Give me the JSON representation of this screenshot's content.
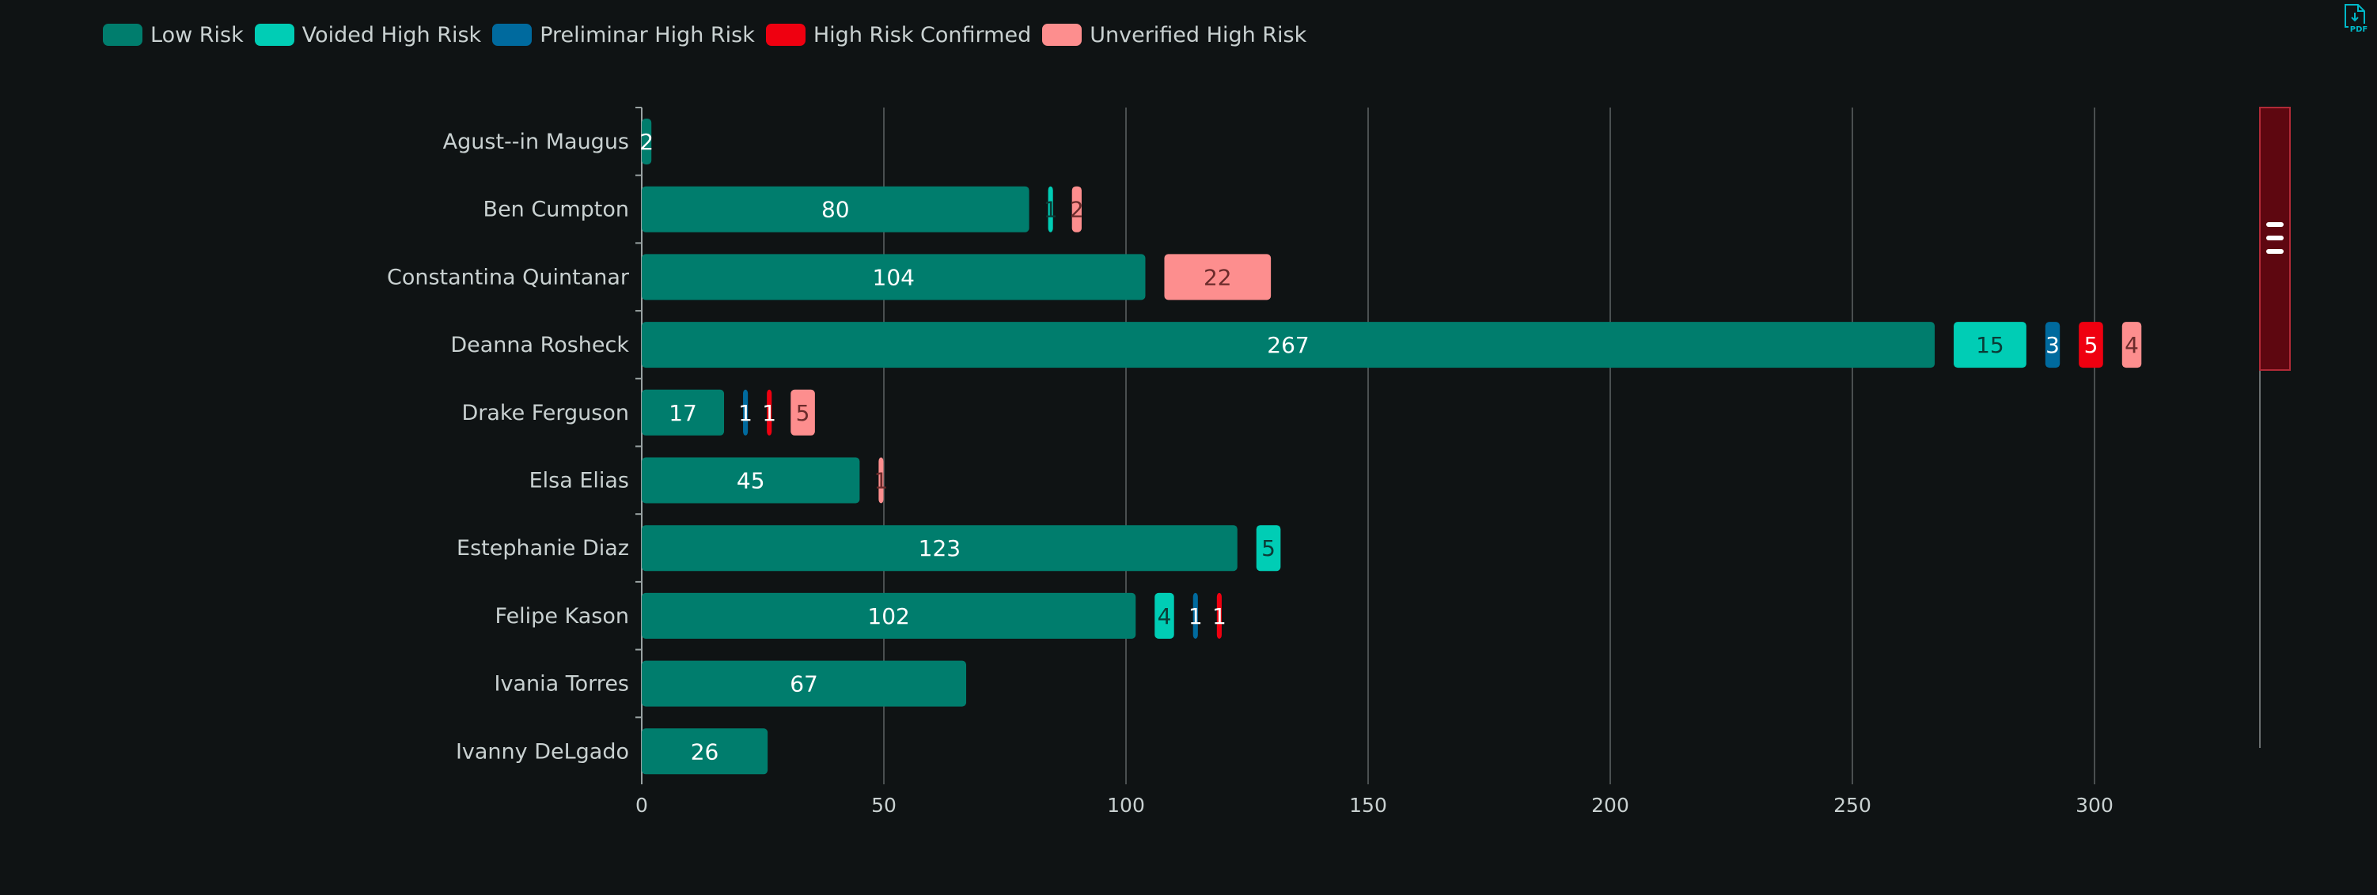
{
  "legend": [
    {
      "name": "Low Risk",
      "color": "#007d6d"
    },
    {
      "name": "Voided High Risk",
      "color": "#00cdb5"
    },
    {
      "name": "Preliminar High Risk",
      "color": "#006a9e"
    },
    {
      "name": "High Risk Confirmed",
      "color": "#ef0010"
    },
    {
      "name": "Unverified High Risk",
      "color": "#fd8e8e"
    }
  ],
  "export_button": {
    "icon": "pdf-export-icon"
  },
  "chart_data": {
    "type": "bar",
    "orientation": "horizontal",
    "stacked": true,
    "categories": [
      "Agust--in Maugus",
      "Ben Cumpton",
      "Constantina Quintanar",
      "Deanna Rosheck",
      "Drake Ferguson",
      "Elsa Elias",
      "Estephanie Diaz",
      "Felipe Kason",
      "Ivania Torres",
      "Ivanny DeLgado"
    ],
    "series": [
      {
        "name": "Low Risk",
        "color": "#007d6d",
        "label_color": "#ffffff",
        "values": [
          2,
          80,
          104,
          267,
          17,
          45,
          123,
          102,
          67,
          26
        ]
      },
      {
        "name": "Voided High Risk",
        "color": "#00cdb5",
        "label_color": "#0b3b36",
        "values": [
          0,
          1,
          0,
          15,
          0,
          0,
          5,
          4,
          0,
          0
        ]
      },
      {
        "name": "Preliminar High Risk",
        "color": "#006a9e",
        "label_color": "#ffffff",
        "values": [
          0,
          0,
          0,
          3,
          1,
          0,
          0,
          1,
          0,
          0
        ]
      },
      {
        "name": "High Risk Confirmed",
        "color": "#ef0010",
        "label_color": "#ffffff",
        "values": [
          0,
          0,
          0,
          5,
          1,
          0,
          0,
          1,
          0,
          0
        ]
      },
      {
        "name": "Unverified High Risk",
        "color": "#fd8e8e",
        "label_color": "#6b2b2b",
        "values": [
          0,
          2,
          22,
          4,
          5,
          1,
          0,
          0,
          0,
          0
        ]
      }
    ],
    "xlim": [
      0,
      300
    ],
    "xticks": [
      0,
      50,
      100,
      150,
      200,
      250,
      300
    ],
    "grid": true,
    "legend_position": "top-left",
    "slider": {
      "color": "#5e0710",
      "border_color": "#b02a37",
      "handle_color": "#ffffff"
    }
  }
}
